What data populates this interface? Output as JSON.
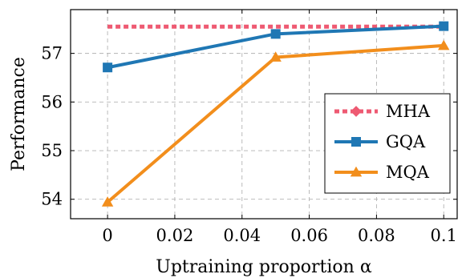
{
  "chart_data": {
    "type": "line",
    "title": "",
    "xlabel": "Uptraining proportion α",
    "ylabel": "Performance",
    "xlim": [
      -0.011,
      0.104
    ],
    "ylim": [
      53.6,
      57.9
    ],
    "xticks": [
      0,
      0.02,
      0.04,
      0.06,
      0.08,
      0.1
    ],
    "xtick_labels": [
      "0",
      "0.02",
      "0.04",
      "0.06",
      "0.08",
      "0.1"
    ],
    "yticks": [
      54,
      55,
      56,
      57
    ],
    "ytick_labels": [
      "54",
      "55",
      "56",
      "57"
    ],
    "grid": true,
    "legend_position": "right",
    "series": [
      {
        "name": "MHA",
        "color": "#ee5a72",
        "style": "dashed",
        "marker": "diamond",
        "x": [
          0,
          0.1
        ],
        "y": [
          57.55,
          57.55
        ]
      },
      {
        "name": "GQA",
        "color": "#1f77b4",
        "style": "solid",
        "marker": "square",
        "x": [
          0,
          0.05,
          0.1
        ],
        "y": [
          56.71,
          57.4,
          57.56
        ]
      },
      {
        "name": "MQA",
        "color": "#f28e1c",
        "style": "solid",
        "marker": "triangle",
        "x": [
          0,
          0.05,
          0.1
        ],
        "y": [
          53.94,
          56.92,
          57.16
        ]
      }
    ]
  }
}
